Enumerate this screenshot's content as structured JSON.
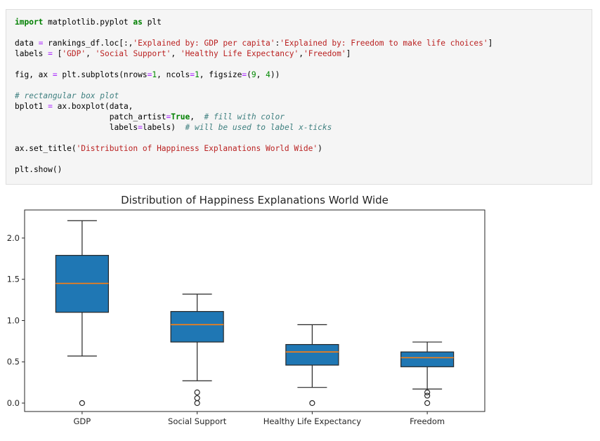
{
  "code_cell": {
    "language": "python",
    "lines": [
      [
        [
          "kw",
          "import"
        ],
        [
          "pl",
          " matplotlib.pyplot "
        ],
        [
          "kw",
          "as"
        ],
        [
          "pl",
          " plt"
        ]
      ],
      [],
      [
        [
          "pl",
          "data "
        ],
        [
          "op",
          "="
        ],
        [
          "pl",
          " rankings_df.loc[:,"
        ],
        [
          "str",
          "'Explained by: GDP per capita'"
        ],
        [
          "pl",
          ":"
        ],
        [
          "str",
          "'Explained by: Freedom to make life choices'"
        ],
        [
          "pl",
          "]"
        ]
      ],
      [
        [
          "pl",
          "labels "
        ],
        [
          "op",
          "="
        ],
        [
          "pl",
          " ["
        ],
        [
          "str",
          "'GDP'"
        ],
        [
          "pl",
          ", "
        ],
        [
          "str",
          "'Social Support'"
        ],
        [
          "pl",
          ", "
        ],
        [
          "str",
          "'Healthy Life Expectancy'"
        ],
        [
          "pl",
          ","
        ],
        [
          "str",
          "'Freedom'"
        ],
        [
          "pl",
          "]"
        ]
      ],
      [],
      [
        [
          "pl",
          "fig, ax "
        ],
        [
          "op",
          "="
        ],
        [
          "pl",
          " plt.subplots(nrows"
        ],
        [
          "op",
          "="
        ],
        [
          "num",
          "1"
        ],
        [
          "pl",
          ", ncols"
        ],
        [
          "op",
          "="
        ],
        [
          "num",
          "1"
        ],
        [
          "pl",
          ", figsize"
        ],
        [
          "op",
          "="
        ],
        [
          "pl",
          "("
        ],
        [
          "num",
          "9"
        ],
        [
          "pl",
          ", "
        ],
        [
          "num",
          "4"
        ],
        [
          "pl",
          "))"
        ]
      ],
      [],
      [
        [
          "com",
          "# rectangular box plot"
        ]
      ],
      [
        [
          "pl",
          "bplot1 "
        ],
        [
          "op",
          "="
        ],
        [
          "pl",
          " ax.boxplot(data,"
        ]
      ],
      [
        [
          "pl",
          "                    patch_artist"
        ],
        [
          "op",
          "="
        ],
        [
          "kw",
          "True"
        ],
        [
          "pl",
          ",  "
        ],
        [
          "com",
          "# fill with color"
        ]
      ],
      [
        [
          "pl",
          "                    labels"
        ],
        [
          "op",
          "="
        ],
        [
          "pl",
          "labels)  "
        ],
        [
          "com",
          "# will be used to label x-ticks"
        ]
      ],
      [],
      [
        [
          "pl",
          "ax.set_title("
        ],
        [
          "str",
          "'Distribution of Happiness Explanations World Wide'"
        ],
        [
          "pl",
          ")"
        ]
      ],
      [],
      [
        [
          "pl",
          "plt.show()"
        ]
      ]
    ]
  },
  "chart_data": {
    "type": "boxplot",
    "title": "Distribution of Happiness Explanations World Wide",
    "categories": [
      "GDP",
      "Social Support",
      "Healthy Life Expectancy",
      "Freedom"
    ],
    "yticks": [
      "0.0",
      "0.5",
      "1.0",
      "1.5",
      "2.0"
    ],
    "ylim": [
      -0.102,
      2.34
    ],
    "grid": false,
    "box_fill_color": "#1f77b4",
    "median_color": "#ff7f0e",
    "line_color": "#262626",
    "series": [
      {
        "name": "GDP",
        "whisker_low": 0.57,
        "q1": 1.1,
        "median": 1.45,
        "q3": 1.79,
        "whisker_high": 2.21,
        "outliers": [
          0.0
        ]
      },
      {
        "name": "Social Support",
        "whisker_low": 0.27,
        "q1": 0.74,
        "median": 0.95,
        "q3": 1.11,
        "whisker_high": 1.32,
        "outliers": [
          0.13,
          0.06,
          0.0
        ]
      },
      {
        "name": "Healthy Life Expectancy",
        "whisker_low": 0.19,
        "q1": 0.46,
        "median": 0.62,
        "q3": 0.71,
        "whisker_high": 0.95,
        "outliers": [
          0.0
        ]
      },
      {
        "name": "Freedom",
        "whisker_low": 0.17,
        "q1": 0.44,
        "median": 0.55,
        "q3": 0.62,
        "whisker_high": 0.74,
        "outliers": [
          0.13,
          0.09,
          0.0
        ]
      }
    ]
  }
}
